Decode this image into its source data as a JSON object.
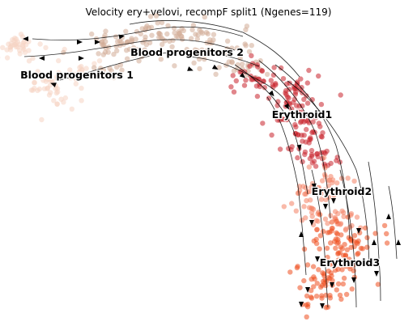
{
  "chart_data": {
    "type": "scatter",
    "title": "Velocity ery+velovi, recompF split1 (Ngenes=119)",
    "xlabel": "",
    "ylabel": "",
    "grid": false,
    "axes_visible": false,
    "overlay": "velocity streamlines with arrowheads",
    "clusters": [
      {
        "name": "Blood progenitors 1",
        "color": "#f6d3c2"
      },
      {
        "name": "Blood progenitors 2",
        "color": "#d1ab96"
      },
      {
        "name": "Erythroid1",
        "color": "#c8232c"
      },
      {
        "name": "Erythroid2",
        "color": "#f48264"
      },
      {
        "name": "Erythroid3",
        "color": "#ee4e1f"
      }
    ]
  }
}
